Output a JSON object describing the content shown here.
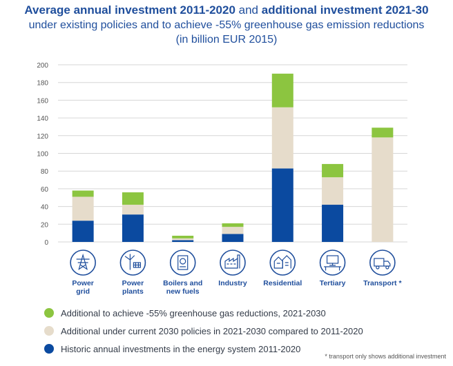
{
  "title": {
    "part1": "Average annual investment 2011-2020",
    "connector": " and ",
    "part2": "additional investment 2021-30",
    "line2": "under existing policies and to achieve -55% greenhouse gas emission reductions",
    "line3": "(in billion EUR 2015)"
  },
  "colors": {
    "green": "#8cc540",
    "beige": "#e6dccb",
    "blue": "#0b4aa0",
    "icon": "#1f4e9c",
    "grid": "#d6d6d6",
    "axis_text": "#555555"
  },
  "chart_data": {
    "type": "bar",
    "stacked": true,
    "categories": [
      "Power\ngrid",
      "Power\nplants",
      "Boilers and\nnew fuels",
      "Industry",
      "Residential",
      "Tertiary",
      "Transport *"
    ],
    "category_icons": [
      "power-grid-icon",
      "power-plants-icon",
      "boilers-icon",
      "industry-icon",
      "residential-icon",
      "tertiary-icon",
      "transport-icon"
    ],
    "series": [
      {
        "name": "Historic annual investments in the energy system 2011-2020",
        "color": "#0b4aa0",
        "values": [
          24,
          31,
          2,
          9,
          83,
          42,
          0
        ]
      },
      {
        "name": "Additional under current 2030 policies in 2021-2030 compared to 2011-2020",
        "color": "#e6dccb",
        "values": [
          27,
          11,
          2,
          8,
          69,
          31,
          118
        ]
      },
      {
        "name": "Additional to achieve -55% greenhouse gas reductions, 2021-2030",
        "color": "#8cc540",
        "values": [
          7,
          14,
          3,
          4,
          38,
          15,
          11
        ]
      }
    ],
    "ylim": [
      0,
      200
    ],
    "yticks": [
      0,
      20,
      40,
      60,
      80,
      100,
      120,
      140,
      160,
      180,
      200
    ],
    "grid": true,
    "legend_order": [
      2,
      1,
      0
    ],
    "legend_placement": "bottom"
  },
  "footnote": "* transport only shows additional investment"
}
